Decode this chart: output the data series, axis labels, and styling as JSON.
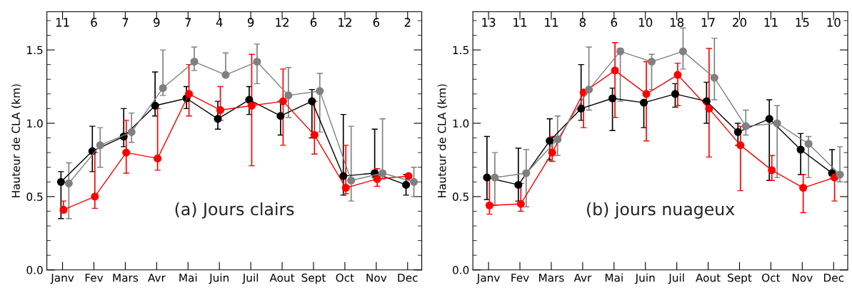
{
  "chart_data": [
    {
      "type": "line",
      "ylabel": "Hauteur de CLA (km)",
      "categories": [
        "Janv",
        "Fev",
        "Mars",
        "Avr",
        "Mai",
        "Juin",
        "Juil",
        "Aout",
        "Sept",
        "Oct",
        "Nov",
        "Dec"
      ],
      "ylim": [
        0,
        1.76
      ],
      "yticks": [
        {
          "value": 0,
          "label": "0.0"
        },
        {
          "value": 0.5,
          "label": "0.5"
        },
        {
          "value": 1,
          "label": "1.0"
        },
        {
          "value": 1.5,
          "label": "1.5"
        }
      ],
      "marker": "circle",
      "grid": false,
      "legend": false,
      "annotations": [
        "(a) Jours clairs",
        "11",
        "6",
        "7",
        "9",
        "7",
        "4",
        "9",
        "12",
        "6",
        "12",
        "6",
        "2"
      ],
      "series": [
        {
          "color": "#000000",
          "values": [
            0.6,
            0.81,
            0.91,
            1.12,
            1.17,
            1.03,
            1.16,
            1.05,
            1.15,
            0.64,
            0.66,
            0.58
          ],
          "errors": [
            [
              0.35,
              0.67
            ],
            [
              0.67,
              0.98
            ],
            [
              0.84,
              1.1
            ],
            [
              1.05,
              1.35
            ],
            [
              1.1,
              1.25
            ],
            [
              0.96,
              1.15
            ],
            [
              1.06,
              1.25
            ],
            [
              0.92,
              1.15
            ],
            [
              0.9,
              1.23
            ],
            [
              0.51,
              1.06
            ],
            [
              0.63,
              0.96
            ],
            [
              0.51,
              0.65
            ]
          ]
        },
        {
          "color": "#ff0000",
          "values": [
            0.41,
            0.5,
            0.8,
            0.76,
            1.2,
            1.09,
            1.12,
            1.15,
            0.92,
            0.56,
            0.62,
            0.64
          ],
          "errors": [
            [
              0.39,
              0.47
            ],
            [
              0.42,
              0.8
            ],
            [
              0.66,
              1.02
            ],
            [
              0.68,
              1.1
            ],
            [
              1.05,
              1.4
            ],
            [
              1.02,
              1.25
            ],
            [
              0.71,
              1.47
            ],
            [
              0.85,
              1.37
            ],
            [
              0.79,
              1.15
            ],
            [
              0.52,
              0.85
            ],
            [
              0.57,
              0.69
            ],
            null
          ]
        },
        {
          "color": "#808080",
          "values": [
            0.59,
            0.85,
            0.94,
            1.24,
            1.42,
            1.33,
            1.42,
            1.19,
            1.22,
            0.61,
            0.66,
            0.6
          ],
          "errors": [
            [
              0.35,
              0.73
            ],
            [
              0.7,
              0.97
            ],
            [
              0.87,
              1.07
            ],
            [
              1.19,
              1.5
            ],
            [
              1.36,
              1.52
            ],
            [
              1.33,
              1.48
            ],
            [
              1.27,
              1.54
            ],
            [
              1.04,
              1.38
            ],
            [
              0.94,
              1.34
            ],
            [
              0.47,
              0.98
            ],
            [
              0.62,
              1.03
            ],
            [
              0.5,
              0.7
            ]
          ]
        }
      ]
    },
    {
      "type": "line",
      "ylabel": "Hauteur de CLA (km)",
      "categories": [
        "Janv",
        "Fev",
        "Mars",
        "Avr",
        "Mai",
        "Juin",
        "Juil",
        "Aout",
        "Sept",
        "Oct",
        "Nov",
        "Dec"
      ],
      "ylim": [
        0,
        1.76
      ],
      "yticks": [
        {
          "value": 0,
          "label": "0.0"
        },
        {
          "value": 0.5,
          "label": "0.5"
        },
        {
          "value": 1,
          "label": "1.0"
        },
        {
          "value": 1.5,
          "label": "1.5"
        }
      ],
      "marker": "circle",
      "grid": false,
      "legend": false,
      "annotations": [
        "(b) jours nuageux",
        "13",
        "11",
        "11",
        "8",
        "6",
        "10",
        "18",
        "17",
        "20",
        "11",
        "15",
        "10"
      ],
      "series": [
        {
          "color": "#000000",
          "values": [
            0.63,
            0.58,
            0.88,
            1.1,
            1.17,
            1.14,
            1.2,
            1.15,
            0.94,
            1.03,
            0.82,
            0.66
          ],
          "errors": [
            [
              0.48,
              0.91
            ],
            [
              0.47,
              0.83
            ],
            [
              0.75,
              1.03
            ],
            [
              1.02,
              1.4
            ],
            [
              0.95,
              1.24
            ],
            [
              0.97,
              1.14
            ],
            [
              1.11,
              1.27
            ],
            [
              1.0,
              1.28
            ],
            [
              0.85,
              1.0
            ],
            [
              0.61,
              1.16
            ],
            [
              0.65,
              0.93
            ],
            [
              0.62,
              0.82
            ]
          ]
        },
        {
          "color": "#ff0000",
          "values": [
            0.44,
            0.45,
            0.8,
            1.21,
            1.36,
            1.2,
            1.33,
            1.1,
            0.85,
            0.68,
            0.56,
            0.63
          ],
          "errors": [
            [
              0.38,
              0.63
            ],
            [
              0.4,
              0.59
            ],
            [
              0.74,
              0.91
            ],
            [
              0.97,
              1.22
            ],
            [
              1.04,
              1.55
            ],
            [
              0.88,
              1.42
            ],
            [
              1.12,
              1.41
            ],
            [
              0.77,
              1.51
            ],
            [
              0.54,
              0.98
            ],
            [
              0.61,
              0.78
            ],
            [
              0.39,
              0.65
            ],
            [
              0.47,
              0.65
            ]
          ]
        },
        {
          "color": "#808080",
          "values": [
            0.63,
            0.66,
            0.89,
            1.23,
            1.49,
            1.42,
            1.49,
            1.31,
            0.98,
            1.0,
            0.86,
            0.65
          ],
          "errors": [
            [
              0.44,
              0.8
            ],
            [
              0.43,
              0.82
            ],
            [
              0.78,
              1.05
            ],
            [
              1.09,
              1.52
            ],
            [
              1.15,
              1.51
            ],
            [
              1.23,
              1.47
            ],
            [
              1.37,
              1.65
            ],
            [
              1.16,
              1.58
            ],
            [
              0.92,
              1.09
            ],
            [
              0.63,
              1.12
            ],
            [
              0.63,
              0.91
            ],
            [
              0.6,
              0.84
            ]
          ]
        }
      ]
    }
  ]
}
